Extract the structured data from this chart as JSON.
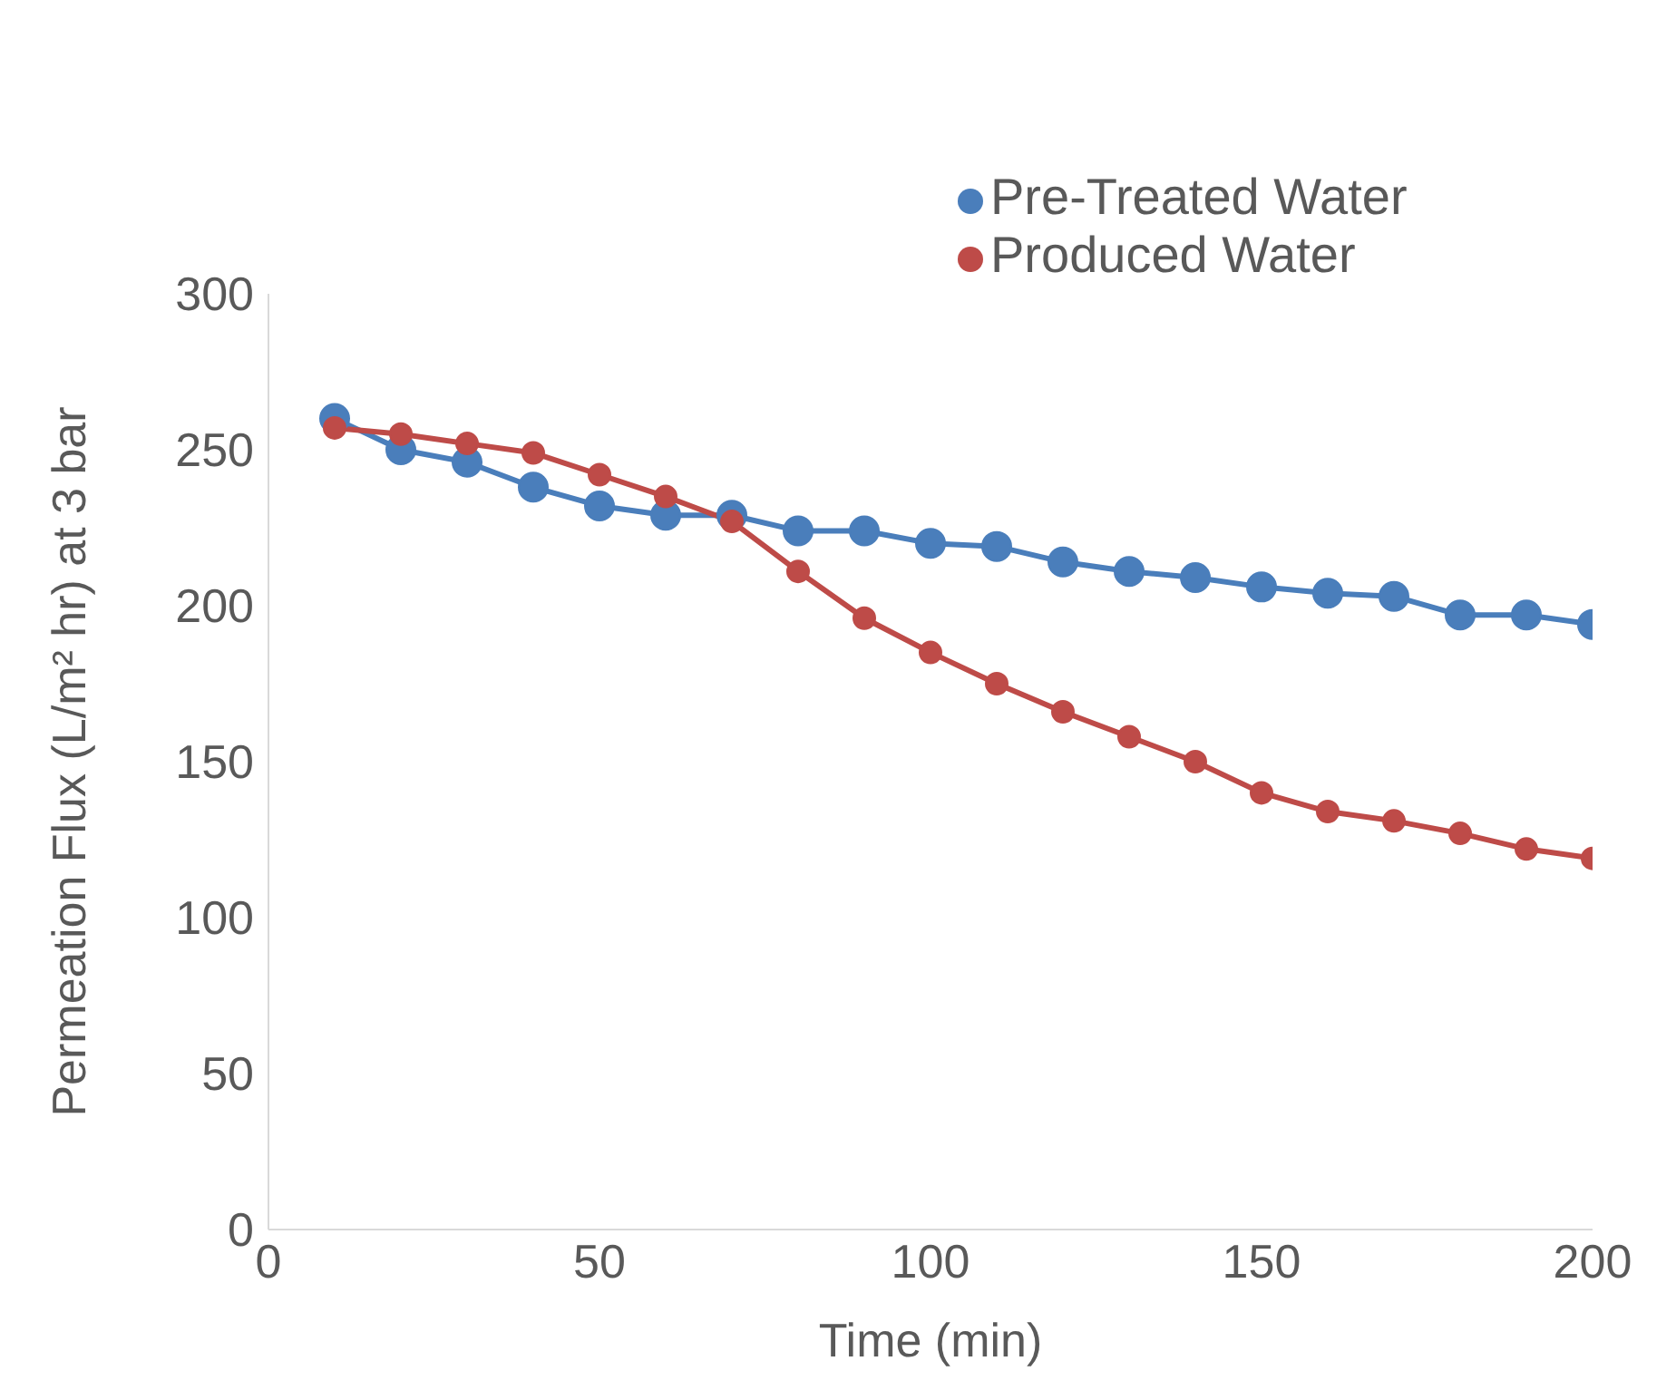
{
  "chart_data": {
    "type": "line",
    "xlabel": "Time (min)",
    "ylabel": "Permeation Flux (L/m² hr) at 3 bar",
    "x": [
      10,
      20,
      30,
      40,
      50,
      60,
      70,
      80,
      90,
      100,
      110,
      120,
      130,
      140,
      150,
      160,
      170,
      180,
      190,
      200
    ],
    "series": [
      {
        "name": "Pre-Treated Water",
        "color": "#4a7ebb",
        "values": [
          260,
          250,
          246,
          238,
          232,
          229,
          229,
          224,
          224,
          220,
          219,
          214,
          211,
          209,
          206,
          204,
          203,
          197,
          197,
          194
        ]
      },
      {
        "name": "Produced Water",
        "color": "#be4b48",
        "values": [
          257,
          255,
          252,
          249,
          242,
          235,
          227,
          211,
          196,
          185,
          175,
          166,
          158,
          150,
          140,
          134,
          131,
          127,
          122,
          119
        ]
      }
    ],
    "xlim": [
      0,
      200
    ],
    "xticks": [
      0,
      50,
      100,
      150,
      200
    ],
    "ylim": [
      0,
      300
    ],
    "yticks": [
      0,
      50,
      100,
      150,
      200,
      250,
      300
    ],
    "legend": "top right",
    "marker": "circle",
    "line_style": "solid"
  }
}
